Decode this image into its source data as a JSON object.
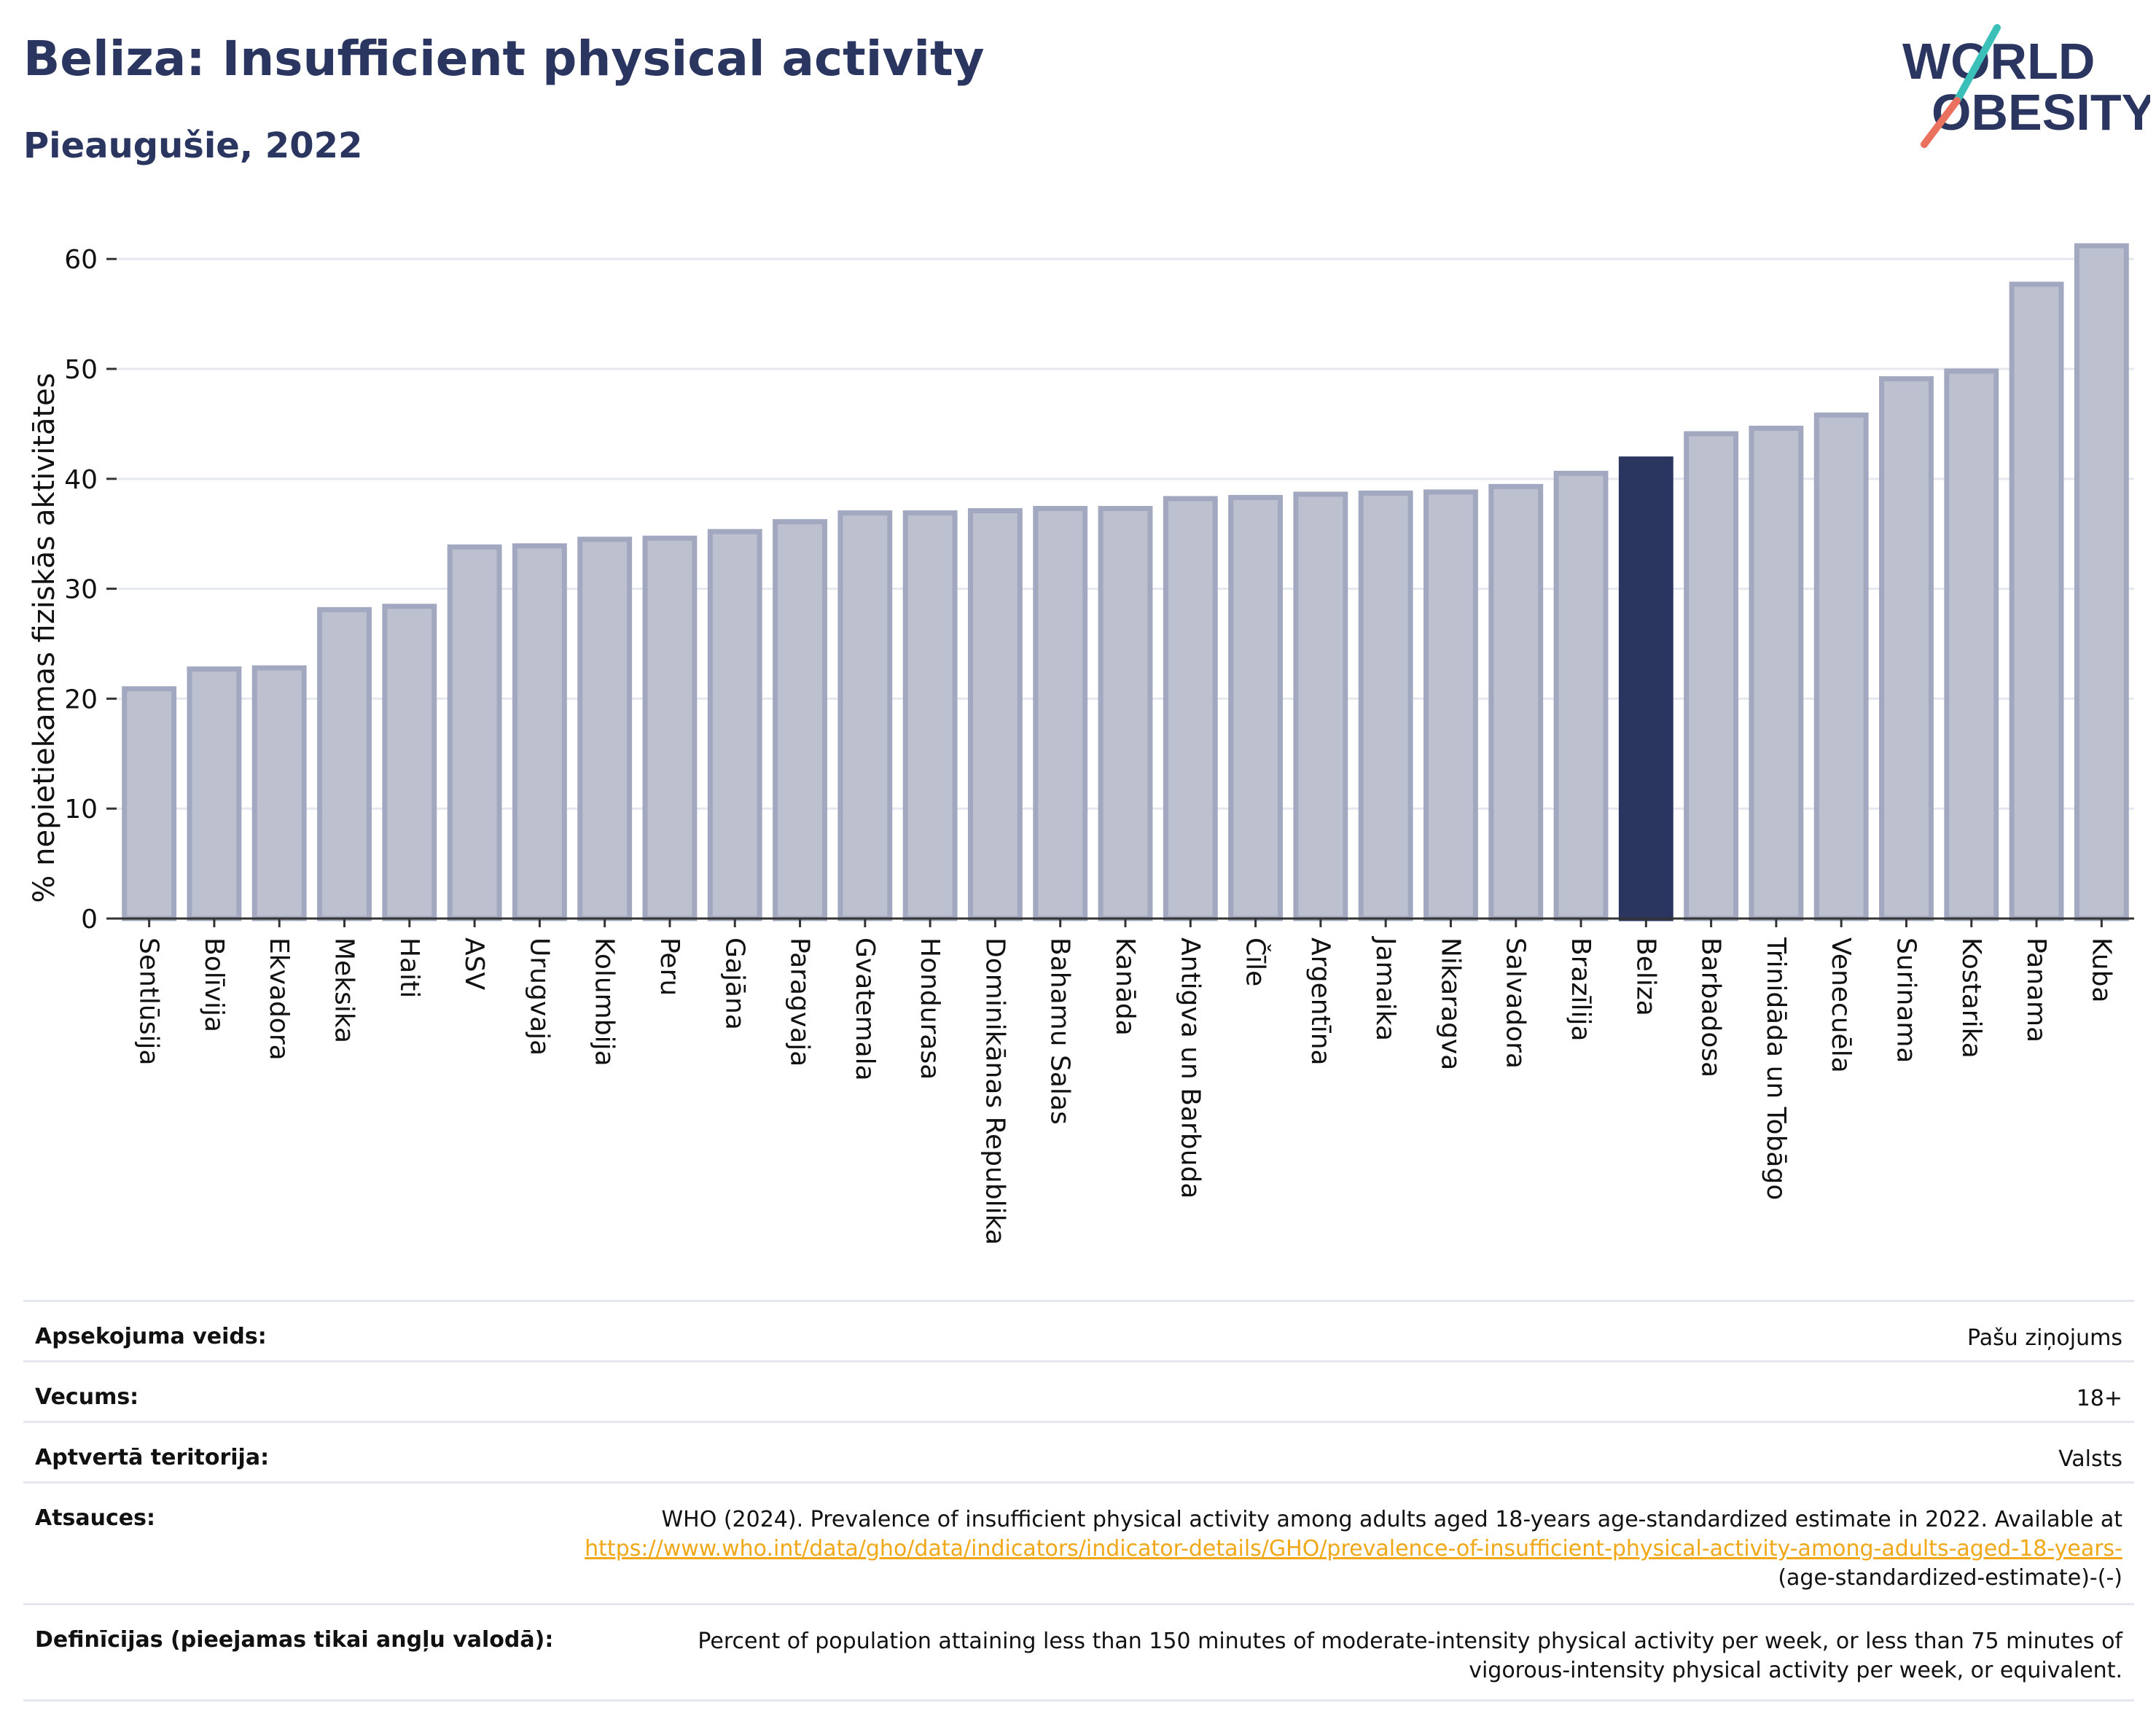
{
  "header": {
    "title": "Beliza: Insufficient physical activity",
    "subtitle": "Pieaugušie, 2022",
    "logo_line1": "WORLD",
    "logo_line2": "OBESITY"
  },
  "colors": {
    "highlight": "#2a3560",
    "bar_fill": "#bcc0cf",
    "bar_stroke": "#a2a8bf",
    "title": "#2a3560",
    "link": "#f0a818",
    "logo_teal": "#3bbfb9",
    "logo_coral": "#e9715d"
  },
  "chart_data": {
    "type": "bar",
    "title": "Beliza: Insufficient physical activity",
    "subtitle": "Pieaugušie, 2022",
    "xlabel": "",
    "ylabel": "% nepietiekamas fiziskās aktivitātes",
    "ylim": [
      0,
      63
    ],
    "yticks": [
      0,
      10,
      20,
      30,
      40,
      50,
      60
    ],
    "grid": true,
    "highlight": "Beliza",
    "categories": [
      "Sentlūsija",
      "Bolīvija",
      "Ekvadora",
      "Meksika",
      "Haiti",
      "ASV",
      "Urugvaja",
      "Kolumbija",
      "Peru",
      "Gajāna",
      "Paragvaja",
      "Gvatemala",
      "Hondurasa",
      "Dominikānas Republika",
      "Bahamu Salas",
      "Kanāda",
      "Antigva un Barbuda",
      "Čīle",
      "Argentīna",
      "Jamaika",
      "Nikaragva",
      "Salvadora",
      "Brazīlija",
      "Beliza",
      "Barbadosa",
      "Trinidāda un Tobāgo",
      "Venecuēla",
      "Surinama",
      "Kostarika",
      "Panama",
      "Kuba"
    ],
    "values": [
      20.9,
      22.7,
      22.8,
      28.1,
      28.4,
      33.8,
      33.9,
      34.5,
      34.6,
      35.2,
      36.1,
      36.9,
      36.9,
      37.1,
      37.3,
      37.3,
      38.2,
      38.3,
      38.6,
      38.7,
      38.8,
      39.3,
      40.5,
      41.8,
      44.1,
      44.6,
      45.8,
      49.1,
      49.8,
      57.7,
      61.2
    ]
  },
  "meta": [
    {
      "label": "Apsekojuma veids:",
      "value": "Pašu ziņojums"
    },
    {
      "label": "Vecums:",
      "value": "18+"
    },
    {
      "label": "Aptvertā teritorija:",
      "value": "Valsts"
    },
    {
      "label": "Atsauces:",
      "value_prefix": "WHO (2024). Prevalence of insufficient physical activity among adults aged 18-years age-standardized estimate in 2022. Available at",
      "link": "https://www.who.int/data/gho/data/indicators/indicator-details/GHO/prevalence-of-insufficient-physical-activity-among-adults-aged-18-years-",
      "value_suffix": "(age-standardized-estimate)-(-)"
    },
    {
      "label": "Definīcijas (pieejamas tikai angļu valodā):",
      "value": "Percent of population attaining less than 150 minutes of moderate-intensity physical activity per week, or less than 75 minutes of vigorous-intensity physical activity per week, or equivalent."
    }
  ]
}
